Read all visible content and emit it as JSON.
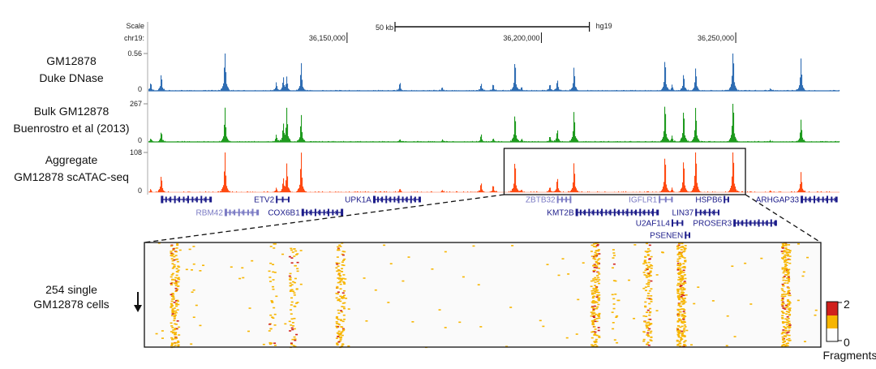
{
  "chart_data": {
    "type": "area",
    "assembly": "hg19",
    "chromosome_label": "chr19:",
    "scale_label": "Scale",
    "scale_bar_label": "50 kb",
    "x_ticks": [
      {
        "value": 36150000,
        "label": "36,150,000"
      },
      {
        "value": 36200000,
        "label": "36,200,000"
      },
      {
        "value": 36250000,
        "label": "36,250,000"
      }
    ],
    "view_range": [
      36098900,
      36276700
    ],
    "scale_bar_bp": 50000,
    "peak_positions": [
      36099400,
      36102100,
      36118500,
      36131700,
      36133500,
      36134400,
      36138100,
      36163500,
      36174400,
      36184400,
      36187500,
      36193100,
      36194800,
      36202100,
      36204000,
      36208300,
      36231700,
      36233500,
      36236500,
      36239600,
      36249200,
      36258800,
      36266700
    ],
    "tracks": [
      {
        "label_lines": [
          "GM12878",
          "Duke DNase"
        ],
        "ymax_label": "0.56",
        "ymin_label": "0",
        "ylim": [
          0,
          0.56
        ],
        "color": "#2f6db3",
        "peak_values": [
          0.1,
          0.2,
          0.56,
          0.1,
          0.16,
          0.16,
          0.34,
          0.1,
          0.04,
          0.09,
          0.08,
          0.37,
          0.05,
          0.08,
          0.13,
          0.28,
          0.39,
          0.07,
          0.2,
          0.28,
          0.55,
          0.03,
          0.39
        ]
      },
      {
        "label_lines": [
          "Bulk GM12878",
          "Buenrostro et al (2013)"
        ],
        "ymax_label": "267",
        "ymin_label": "0",
        "ylim": [
          0,
          267
        ],
        "color": "#1e9a1e",
        "peak_values": [
          20,
          57,
          193,
          40,
          97,
          187,
          153,
          15,
          10,
          45,
          20,
          159,
          15,
          30,
          68,
          176,
          222,
          30,
          182,
          199,
          267,
          8,
          125
        ]
      },
      {
        "label_lines": [
          "Aggregate",
          "GM12878 scATAC-seq"
        ],
        "ymax_label": "108",
        "ymin_label": "0",
        "ylim": [
          0,
          108
        ],
        "color": "#ff4a12",
        "peak_values": [
          6,
          37,
          90,
          10,
          26,
          62,
          88,
          8,
          5,
          20,
          15,
          71,
          6,
          12,
          31,
          66,
          82,
          10,
          73,
          104,
          104,
          4,
          44
        ]
      }
    ],
    "genes": [
      {
        "name": "",
        "start": 36102100,
        "end": 36115000,
        "row": 0,
        "shade": "dark"
      },
      {
        "name": "ETV2",
        "start": 36131700,
        "end": 36135200,
        "row": 0,
        "shade": "dark"
      },
      {
        "name": "UPK1A",
        "start": 36156700,
        "end": 36168800,
        "row": 0,
        "shade": "dark"
      },
      {
        "name": "ZBTB32",
        "start": 36204000,
        "end": 36207700,
        "row": 0,
        "shade": "light"
      },
      {
        "name": "IGFLR1",
        "start": 36230200,
        "end": 36233800,
        "row": 0,
        "shade": "light"
      },
      {
        "name": "HSPB6",
        "start": 36246900,
        "end": 36248300,
        "row": 0,
        "shade": "dark"
      },
      {
        "name": "ARHGAP33",
        "start": 36266700,
        "end": 36276000,
        "row": 0,
        "shade": "dark"
      },
      {
        "name": "RBM42",
        "start": 36118500,
        "end": 36127100,
        "row": 1,
        "shade": "light"
      },
      {
        "name": "COX6B1",
        "start": 36138300,
        "end": 36148800,
        "row": 1,
        "shade": "dark"
      },
      {
        "name": "KMT2B",
        "start": 36208800,
        "end": 36230000,
        "row": 1,
        "shade": "dark"
      },
      {
        "name": "LIN37",
        "start": 36239600,
        "end": 36245800,
        "row": 1,
        "shade": "dark"
      },
      {
        "name": "U2AF1L4",
        "start": 36233500,
        "end": 36236500,
        "row": 2,
        "shade": "dark"
      },
      {
        "name": "PROSER3",
        "start": 36249400,
        "end": 36260400,
        "row": 2,
        "shade": "dark"
      },
      {
        "name": "PSENEN",
        "start": 36236900,
        "end": 36238300,
        "row": 3,
        "shade": "dark"
      }
    ],
    "gene_colors": {
      "dark": "#1c1c8a",
      "light": "#7b7bc4"
    },
    "zoom_region": [
      36190400,
      36252500
    ],
    "heatmap": {
      "type": "heatmap",
      "label_lines": [
        "254 single",
        "GM12878 cells"
      ],
      "n_cells": 254,
      "legend": {
        "title": "Fragments",
        "max_label": "2",
        "min_label": "0",
        "colors": [
          "#ffffff",
          "#f7b500",
          "#d0201c"
        ]
      }
    }
  }
}
